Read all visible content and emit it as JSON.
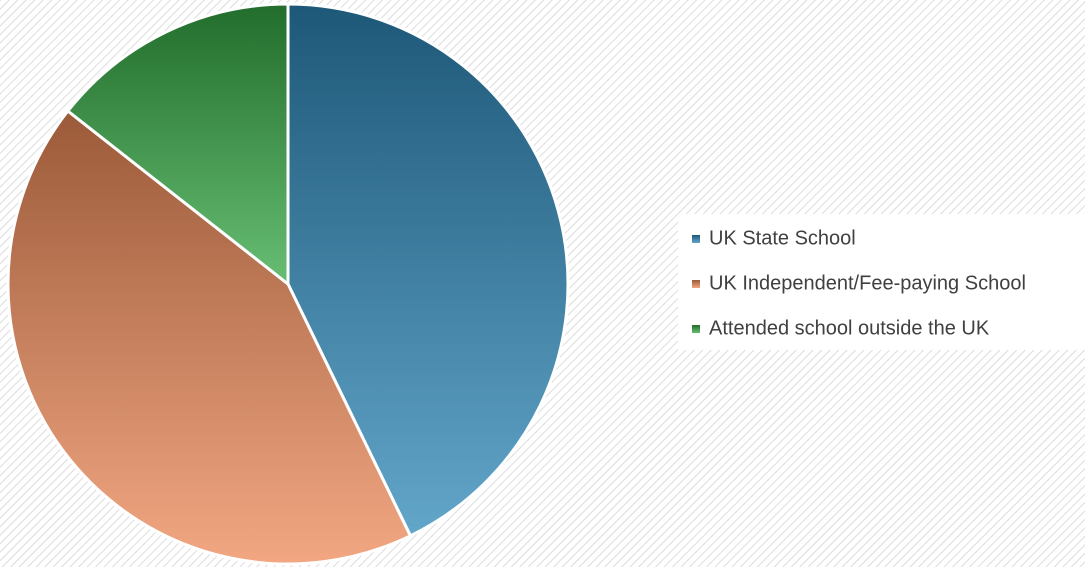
{
  "chart_data": {
    "type": "pie",
    "categories": [
      "UK State School",
      "UK Independent/Fee-paying School",
      "Attended school outside the UK"
    ],
    "values": [
      42.8,
      42.8,
      14.4
    ],
    "colors": [
      "#2e88b8",
      "#ee8a58",
      "#34a844"
    ],
    "legend": "right"
  }
}
